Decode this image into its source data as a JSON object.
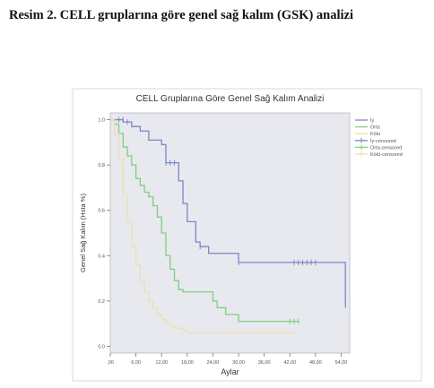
{
  "caption": "Resim 2. CELL gruplarına göre genel sağ kalım (GSK) analizi",
  "chart_data": {
    "type": "line",
    "step": true,
    "title": "CELL Gruplarına Göre Genel Sağ Kalım Analizi",
    "xlabel": "Aylar",
    "ylabel": "Genel Sağ Kalım (Hsta %)",
    "xlim": [
      0,
      56
    ],
    "ylim": [
      -0.03,
      1.03
    ],
    "xticks": [
      0,
      6,
      12,
      18,
      24,
      30,
      36,
      42,
      48,
      54
    ],
    "xtick_labels": [
      ",00",
      "6,00",
      "12,00",
      "18,00",
      "24,00",
      "30,00",
      "36,00",
      "42,00",
      "48,00",
      "54,00"
    ],
    "yticks": [
      0,
      0.2,
      0.4,
      0.6,
      0.8,
      1.0
    ],
    "ytick_labels": [
      "0.0",
      "0.2",
      "0.4",
      "0.6",
      "0.8",
      "1.0"
    ],
    "grid": false,
    "legend_position": "right",
    "background_color": "#e8e8ef",
    "legend": [
      {
        "label": "İy",
        "color": "#7b88c6",
        "kind": "line"
      },
      {
        "label": "Orta",
        "color": "#7ed07e",
        "kind": "line"
      },
      {
        "label": "Kötü",
        "color": "#e9e2b0",
        "kind": "line"
      },
      {
        "label": "İy-censored",
        "color": "#7b88c6",
        "kind": "censor"
      },
      {
        "label": "Orta-censored",
        "color": "#7ed07e",
        "kind": "censor"
      },
      {
        "label": "Kötü-censored",
        "color": "#e9e2b0",
        "kind": "censor"
      }
    ],
    "series": [
      {
        "color": "#7b88c6",
        "x": [
          0,
          3,
          5,
          7,
          9,
          12,
          13,
          16,
          17,
          18,
          20,
          21,
          23,
          30,
          55
        ],
        "y": [
          1.0,
          0.99,
          0.97,
          0.95,
          0.91,
          0.89,
          0.81,
          0.73,
          0.63,
          0.55,
          0.46,
          0.44,
          0.41,
          0.37,
          0.18
        ],
        "censored_x": [
          2,
          3,
          4,
          13,
          14,
          15,
          21,
          30,
          43,
          44,
          45,
          46,
          47,
          48,
          55
        ],
        "censored_y": [
          1.0,
          1.0,
          0.99,
          0.81,
          0.81,
          0.81,
          0.44,
          0.37,
          0.37,
          0.37,
          0.37,
          0.37,
          0.37,
          0.37,
          0.18
        ]
      },
      {
        "color": "#7ed07e",
        "x": [
          0,
          1,
          2,
          3,
          4,
          5,
          6,
          7,
          8,
          9,
          10,
          11,
          12,
          13,
          14,
          15,
          16,
          17,
          24,
          25,
          27,
          30,
          44
        ],
        "y": [
          1.0,
          0.98,
          0.94,
          0.88,
          0.84,
          0.8,
          0.74,
          0.71,
          0.68,
          0.66,
          0.62,
          0.57,
          0.5,
          0.4,
          0.34,
          0.29,
          0.25,
          0.24,
          0.2,
          0.17,
          0.14,
          0.11,
          0.11
        ],
        "censored_x": [
          42,
          43,
          44
        ],
        "censored_y": [
          0.11,
          0.11,
          0.11
        ]
      },
      {
        "color": "#e9e2b0",
        "x": [
          0,
          1,
          2,
          3,
          4,
          5,
          6,
          7,
          8,
          9,
          10,
          11,
          12,
          13,
          14,
          15,
          16,
          17,
          18,
          44
        ],
        "y": [
          1.0,
          0.93,
          0.82,
          0.67,
          0.55,
          0.44,
          0.36,
          0.29,
          0.24,
          0.2,
          0.17,
          0.14,
          0.12,
          0.1,
          0.09,
          0.08,
          0.08,
          0.07,
          0.06,
          0.06
        ],
        "censored_x": [
          2,
          3
        ],
        "censored_y": [
          0.93,
          0.82
        ]
      }
    ]
  }
}
